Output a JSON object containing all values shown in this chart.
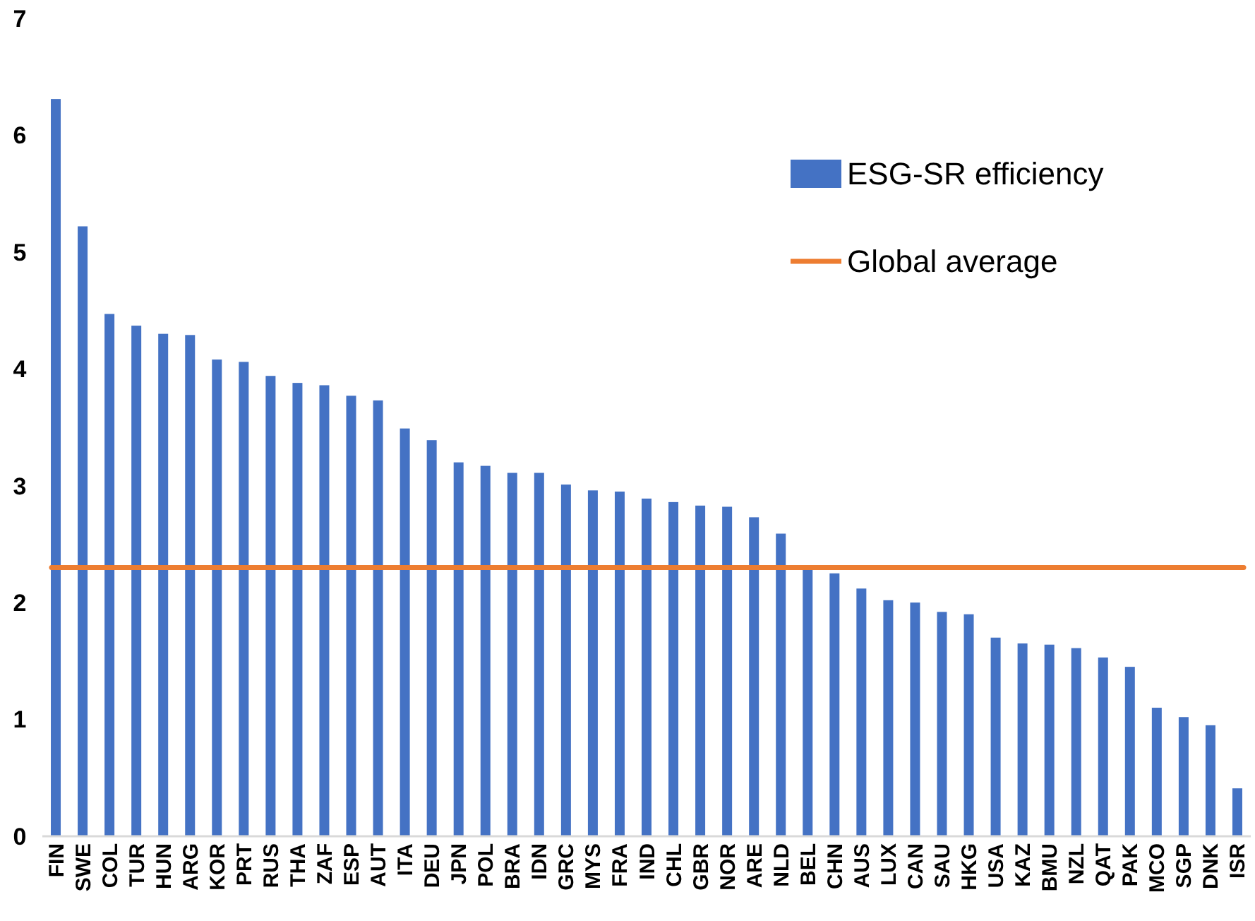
{
  "chart_data": {
    "type": "bar",
    "categories": [
      "FIN",
      "SWE",
      "COL",
      "TUR",
      "HUN",
      "ARG",
      "KOR",
      "PRT",
      "RUS",
      "THA",
      "ZAF",
      "ESP",
      "AUT",
      "ITA",
      "DEU",
      "JPN",
      "POL",
      "BRA",
      "IDN",
      "GRC",
      "MYS",
      "FRA",
      "IND",
      "CHL",
      "GBR",
      "NOR",
      "ARE",
      "NLD",
      "BEL",
      "CHN",
      "AUS",
      "LUX",
      "CAN",
      "SAU",
      "HKG",
      "USA",
      "KAZ",
      "BMU",
      "NZL",
      "QAT",
      "PAK",
      "MCO",
      "SGP",
      "DNK",
      "ISR"
    ],
    "series": [
      {
        "name": "ESG-SR efficiency",
        "color": "#4472c4",
        "values": [
          6.31,
          5.22,
          4.47,
          4.37,
          4.3,
          4.29,
          4.08,
          4.06,
          3.94,
          3.88,
          3.86,
          3.77,
          3.73,
          3.49,
          3.39,
          3.2,
          3.17,
          3.11,
          3.11,
          3.01,
          2.96,
          2.95,
          2.89,
          2.86,
          2.83,
          2.82,
          2.73,
          2.59,
          2.28,
          2.25,
          2.12,
          2.02,
          2.0,
          1.92,
          1.9,
          1.7,
          1.65,
          1.64,
          1.61,
          1.53,
          1.45,
          1.1,
          1.02,
          0.95,
          0.41
        ]
      }
    ],
    "ref_lines": [
      {
        "axis": "y",
        "value": 2.3,
        "label": "Global average",
        "color": "#ed7d31"
      }
    ],
    "ylim": [
      0,
      7
    ],
    "yticks": [
      0,
      1,
      2,
      3,
      4,
      5,
      6,
      7
    ],
    "legend": "top right",
    "grid": false
  }
}
